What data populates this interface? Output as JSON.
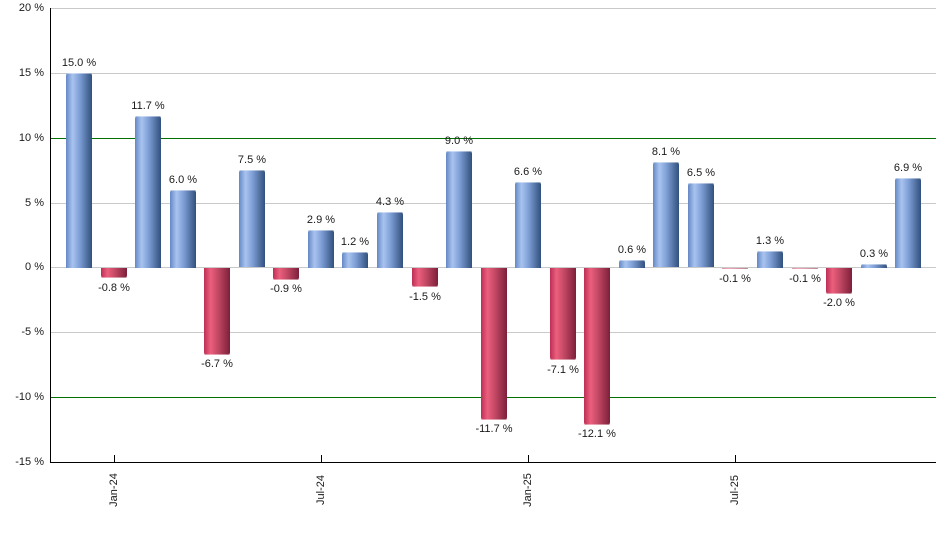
{
  "chart_data": {
    "type": "bar",
    "title": "",
    "xlabel": "",
    "ylabel": "",
    "ylim": [
      -15,
      20
    ],
    "grid": true,
    "legend": "none",
    "values": [
      15.0,
      -0.8,
      11.7,
      6.0,
      -6.7,
      7.5,
      -0.9,
      2.9,
      1.2,
      4.3,
      -1.5,
      9.0,
      -11.7,
      6.6,
      -7.1,
      -12.1,
      0.6,
      8.1,
      6.5,
      -0.1,
      1.3,
      -0.1,
      -2.0,
      0.3,
      6.9
    ],
    "value_labels": [
      "15.0 %",
      "-0.8 %",
      "11.7 %",
      "6.0 %",
      "-6.7 %",
      "7.5 %",
      "-0.9 %",
      "2.9 %",
      "1.2 %",
      "4.3 %",
      "-1.5 %",
      "9.0 %",
      "-11.7 %",
      "6.6 %",
      "-7.1 %",
      "-12.1 %",
      "0.6 %",
      "8.1 %",
      "6.5 %",
      "-0.1 %",
      "1.3 %",
      "-0.1 %",
      "-2.0 %",
      "0.3 %",
      "6.9 %"
    ],
    "y_ticks": [
      {
        "label": "20 %",
        "value": 20
      },
      {
        "label": "15 %",
        "value": 15
      },
      {
        "label": "10 %",
        "value": 10
      },
      {
        "label": "5 %",
        "value": 5
      },
      {
        "label": "0 %",
        "value": 0
      },
      {
        "label": "-5 %",
        "value": -5
      },
      {
        "label": "-10 %",
        "value": -10
      },
      {
        "label": "-15 %",
        "value": -15
      }
    ],
    "grid_values": [
      20,
      15,
      5,
      0,
      -5
    ],
    "reference_lines": [
      {
        "value": 10,
        "color": "#007000"
      },
      {
        "value": -10,
        "color": "#007000"
      }
    ],
    "x_ticks": [
      {
        "label": "Jan-24",
        "bar_index": 1
      },
      {
        "label": "Jul-24",
        "bar_index": 7
      },
      {
        "label": "Jan-25",
        "bar_index": 13
      },
      {
        "label": "Jul-25",
        "bar_index": 19
      }
    ],
    "colors": {
      "positive_bar_gradient": [
        "#6488c5",
        "#a9c3ef",
        "#7e9fd6",
        "#31507d"
      ],
      "negative_bar_gradient": [
        "#bc2f54",
        "#ec5f7e",
        "#c64a66",
        "#7c1f3a"
      ],
      "gridline": "#c9c9c9",
      "reference_line": "#007000",
      "axis": "#000000",
      "label_text": "#1a1a1a"
    }
  }
}
